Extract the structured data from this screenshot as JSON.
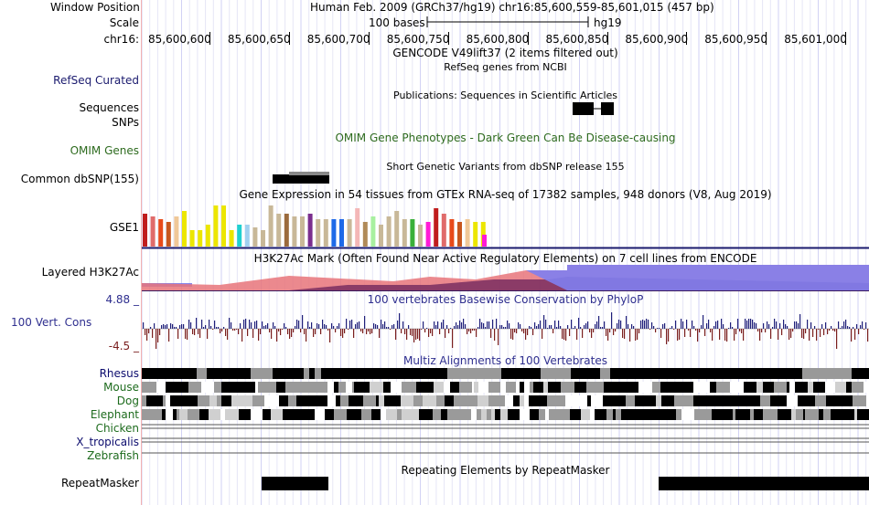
{
  "header": {
    "window_position_label": "Window Position",
    "window_position_text": "Human Feb. 2009 (GRCh37/hg19)   chr16:85,600,559-85,601,015 (457 bp)",
    "scale_label": "Scale",
    "scale_text": "100 bases",
    "assembly": "hg19",
    "chrom_label": "chr16:",
    "ticks": [
      "85,600,600",
      "85,600,650",
      "85,600,700",
      "85,600,750",
      "85,600,800",
      "85,600,850",
      "85,600,900",
      "85,600,950",
      "85,601,000"
    ]
  },
  "tracks": {
    "gencode_title": "GENCODE V49lift37 (2 items filtered out)",
    "refseq_label": "RefSeq Curated",
    "refseq_title": "RefSeq genes from NCBI",
    "publications_title": "Publications: Sequences in Scientific Articles",
    "sequences_label": "Sequences",
    "snps_label": "SNPs",
    "omim_label": "OMIM Genes",
    "omim_title": "OMIM Gene Phenotypes - Dark Green Can Be Disease-causing",
    "dbsnp_title": "Short Genetic Variants from dbSNP release 155",
    "dbsnp_label": "Common dbSNP(155)",
    "gtex_title": "Gene Expression in 54 tissues from GTEx RNA-seq of 17382 samples, 948 donors (V8, Aug 2019)",
    "gtex_label": "GSE1",
    "h3k27ac_title": "H3K27Ac Mark (Often Found Near Active Regulatory Elements) on 7 cell lines from ENCODE",
    "h3k27ac_label": "Layered H3K27Ac",
    "cons_max": "4.88 _",
    "cons_title": "100 vertebrates Basewise Conservation by PhyloP",
    "cons_label": "100 Vert. Cons",
    "cons_min": "-4.5 _",
    "multiz_title": "Multiz Alignments of 100 Vertebrates",
    "species": [
      "Rhesus",
      "Mouse",
      "Dog",
      "Elephant",
      "Chicken",
      "X_tropicalis",
      "Zebrafish"
    ],
    "repeat_title": "Repeating Elements by RepeatMasker",
    "repeat_label": "RepeatMasker"
  },
  "colors": {
    "refseq": "#1a1a6e",
    "omim": "#2e6b1f",
    "cons_label": "#2f2f8f",
    "cons_pos": "#1f1f7a",
    "cons_neg": "#7a1e1e",
    "species_primate": "#0d0d6e",
    "species_other": "#1d6b1d",
    "gtex": [
      "#c01d1d",
      "#e06b6b",
      "#e84a1a",
      "#c7561d",
      "#f0c898",
      "#ece600",
      "#ece600",
      "#ece600",
      "#ece600",
      "#ece600",
      "#ece600",
      "#ece600",
      "#1fd0d0",
      "#a0d0f0",
      "#c8b898",
      "#c8b898",
      "#c8b898",
      "#c8b898",
      "#9b6a3c",
      "#c8b898",
      "#c8b898",
      "#7a2e8e",
      "#c8b898",
      "#c8b898",
      "#1e6ae8",
      "#1e6ae8",
      "#c8b898",
      "#f4b7b7",
      "#b08a58",
      "#a8f0a0",
      "#c8b898",
      "#c8b898",
      "#c8b898",
      "#c8b898",
      "#3ab03a",
      "#c8b898",
      "#ff1ad6"
    ]
  }
}
